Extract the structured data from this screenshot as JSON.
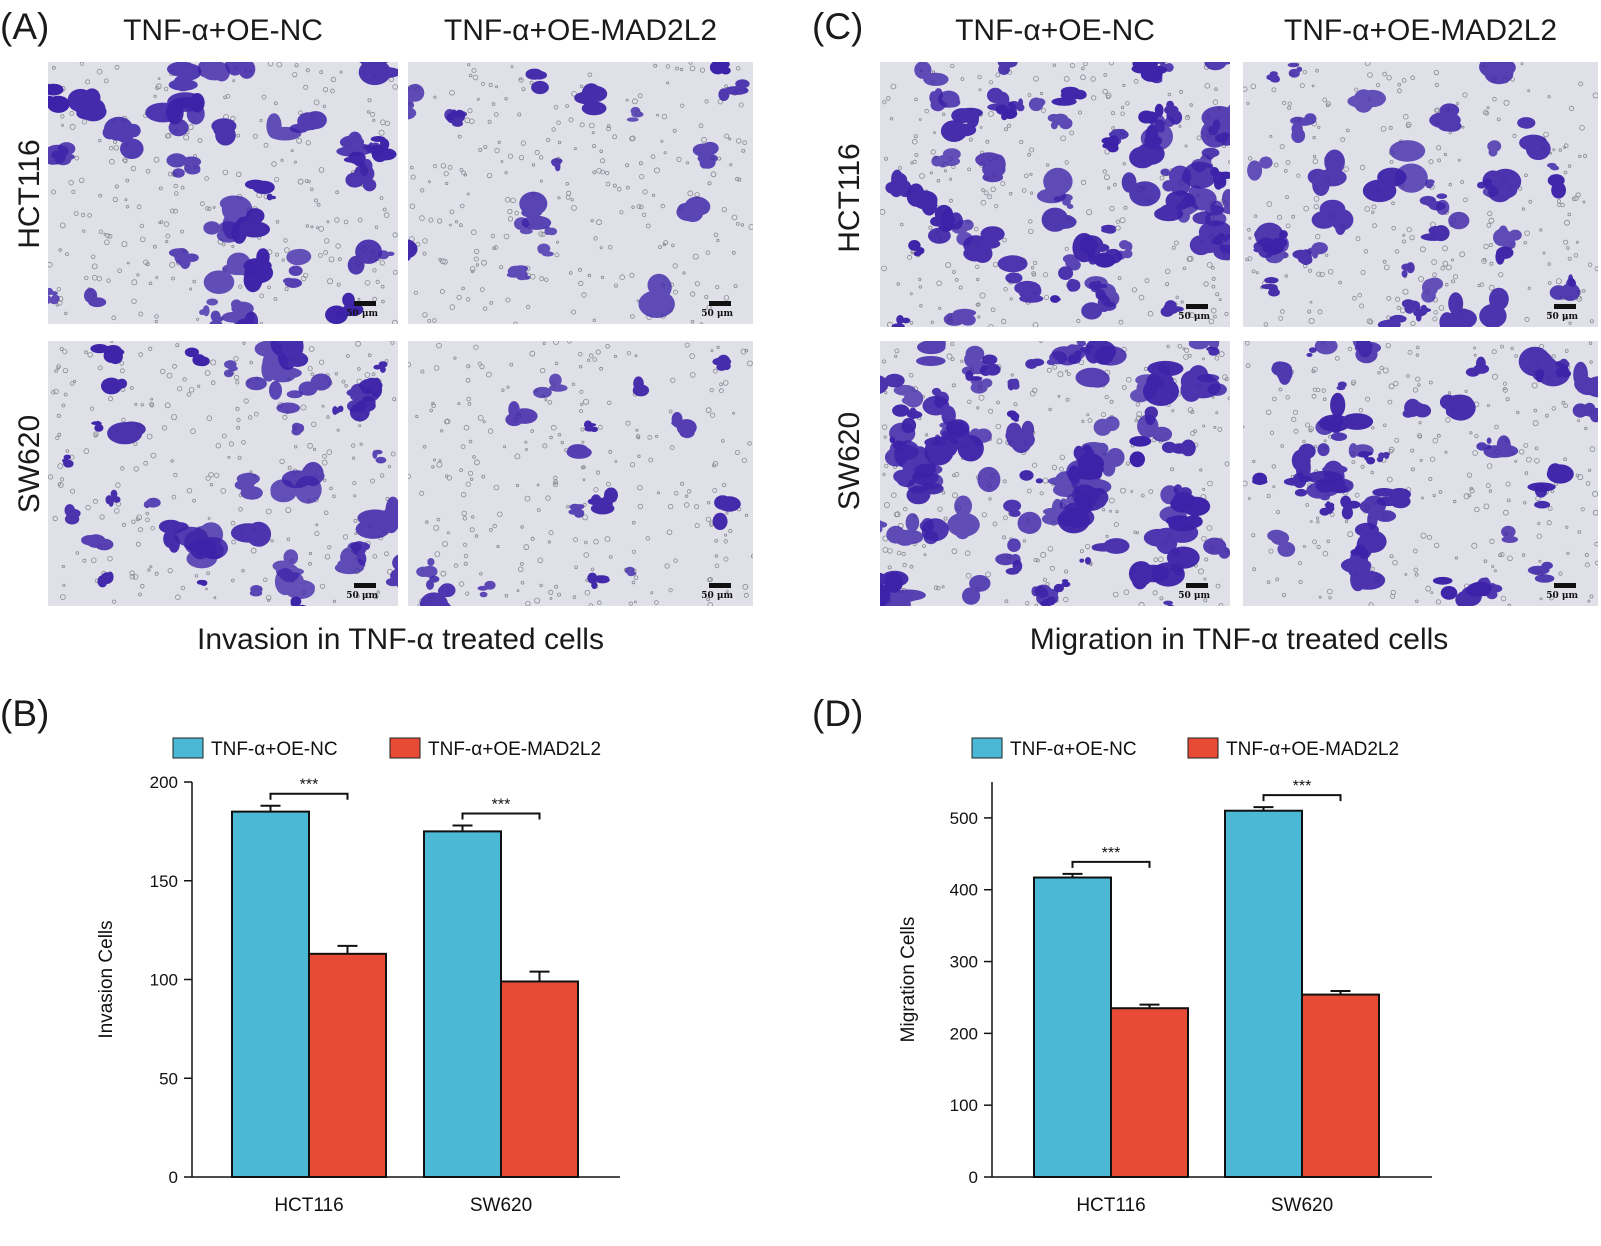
{
  "figure": {
    "panel_a": {
      "letter": "(A)",
      "col_heads": [
        "TNF-α+OE-NC",
        "TNF-α+OE-MAD2L2"
      ],
      "row_labels": [
        "HCT116",
        "SW620"
      ],
      "scale_label": "50 μm",
      "caption": "Invasion in TNF-α treated cells"
    },
    "panel_c": {
      "letter": "(C)",
      "col_heads": [
        "TNF-α+OE-NC",
        "TNF-α+OE-MAD2L2"
      ],
      "row_labels": [
        "HCT116",
        "SW620"
      ],
      "scale_label": "50 μm",
      "caption": "Migration in TNF-α treated cells"
    },
    "panel_b": {
      "letter": "(B)"
    },
    "panel_d": {
      "letter": "(D)"
    }
  },
  "colors": {
    "nc": "#4bb9d6",
    "mad2l2": "#e84b35",
    "stain": "#3c22a8",
    "background": "#dfe0e8"
  },
  "chart_data": [
    {
      "id": "invasion",
      "type": "bar",
      "categories": [
        "HCT116",
        "SW620"
      ],
      "series": [
        {
          "name": "TNF-α+OE-NC",
          "values": [
            185,
            175
          ],
          "errors": [
            3,
            3
          ]
        },
        {
          "name": "TNF-α+OE-MAD2L2",
          "values": [
            113,
            99
          ],
          "errors": [
            4,
            5
          ]
        }
      ],
      "ylabel": "Invasion Cells",
      "ylim": [
        0,
        200
      ],
      "yticks": [
        0,
        50,
        100,
        150,
        200
      ],
      "significance": [
        "***",
        "***"
      ],
      "legend": "top"
    },
    {
      "id": "migration",
      "type": "bar",
      "categories": [
        "HCT116",
        "SW620"
      ],
      "series": [
        {
          "name": "TNF-α+OE-NC",
          "values": [
            417,
            510
          ],
          "errors": [
            5,
            5
          ]
        },
        {
          "name": "TNF-α+OE-MAD2L2",
          "values": [
            235,
            254
          ],
          "errors": [
            5,
            5
          ]
        }
      ],
      "ylabel": "Migration Cells",
      "ylim": [
        0,
        550
      ],
      "yticks": [
        0,
        100,
        200,
        300,
        400,
        500
      ],
      "significance": [
        "***",
        "***"
      ],
      "legend": "top"
    }
  ]
}
